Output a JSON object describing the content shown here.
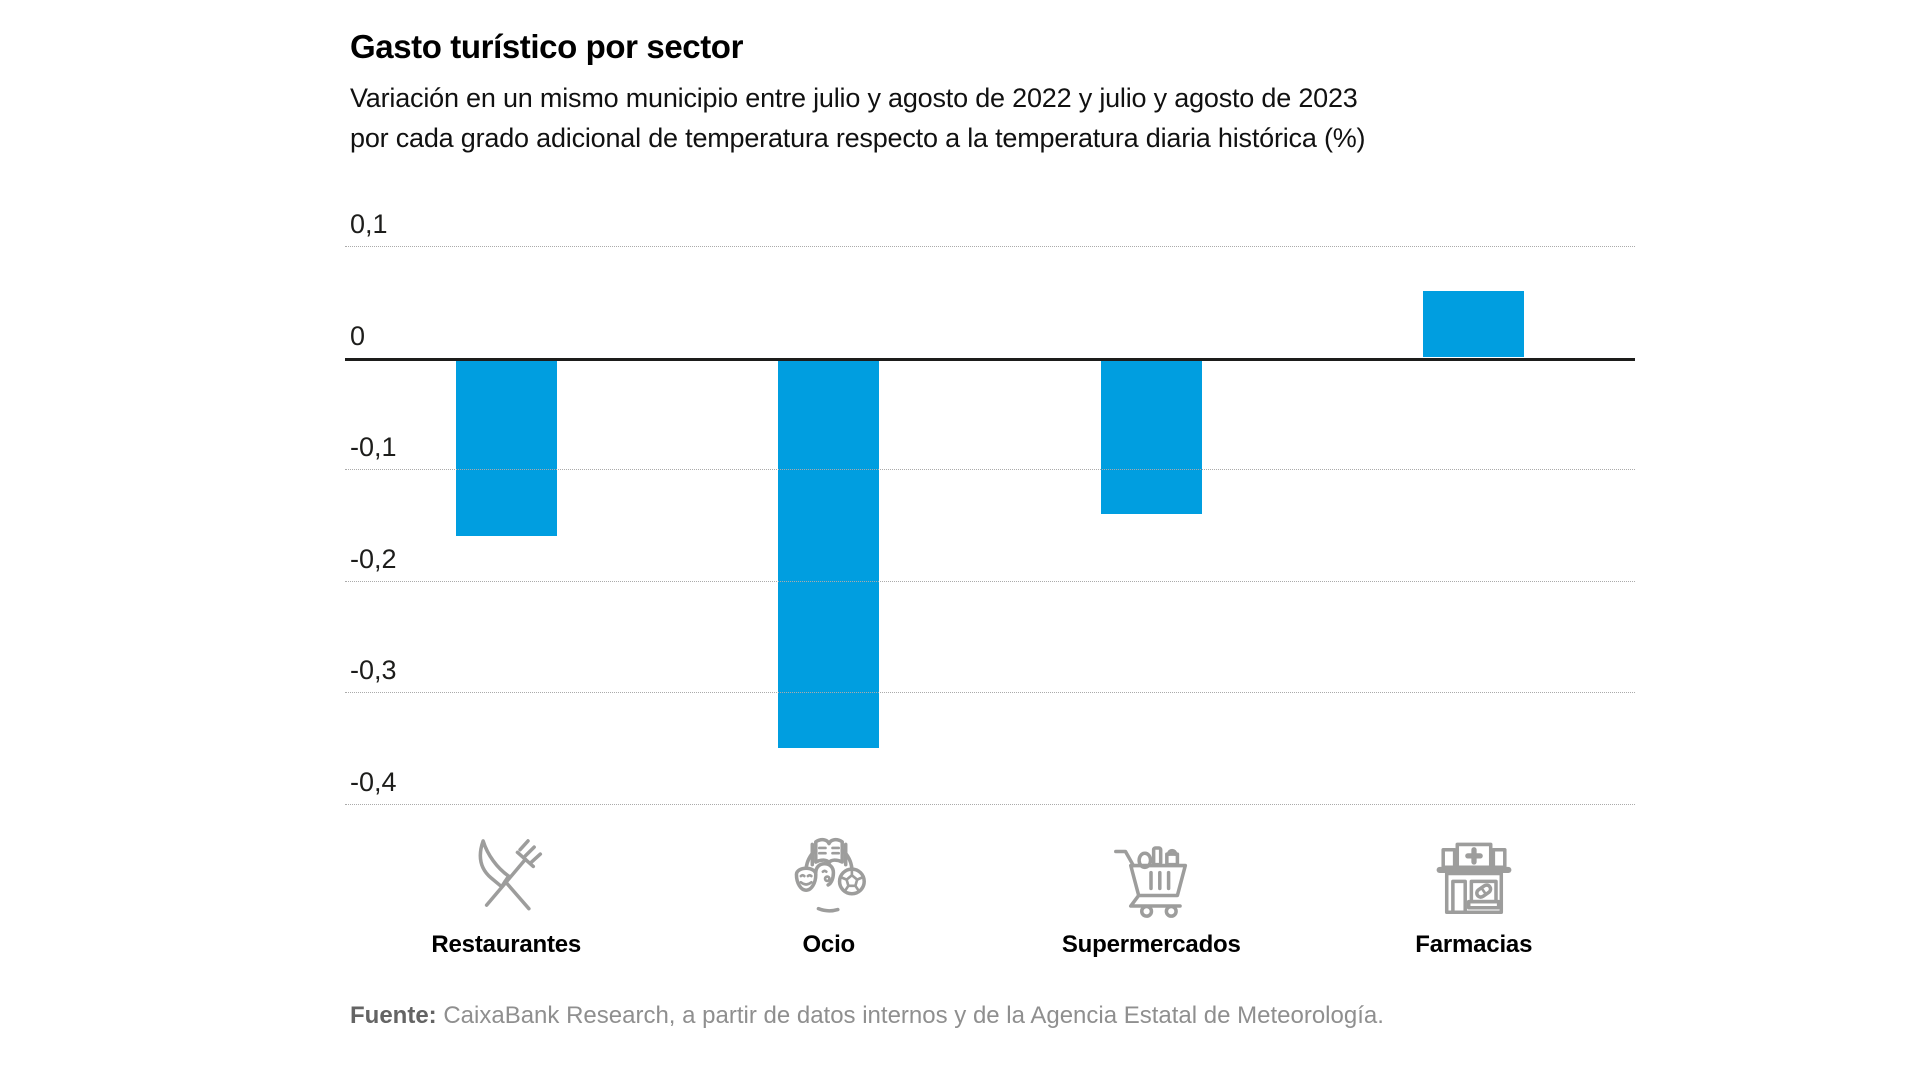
{
  "chart_data": {
    "type": "bar",
    "title": "Gasto turístico por sector",
    "subtitle_lines": [
      "Variación en un mismo municipio entre julio y agosto de 2022 y julio y agosto de 2023",
      "por cada grado adicional de temperatura respecto a la temperatura diaria histórica (%)"
    ],
    "categories": [
      "Restaurantes",
      "Ocio",
      "Supermercados",
      "Farmacias"
    ],
    "values": [
      -0.16,
      -0.35,
      -0.14,
      0.06
    ],
    "icons": [
      "restaurant-utensils-icon",
      "leisure-icon",
      "supermarket-cart-icon",
      "pharmacy-icon"
    ],
    "y_ticks": [
      {
        "value": 0.1,
        "label": "0,1"
      },
      {
        "value": 0,
        "label": "0"
      },
      {
        "value": -0.1,
        "label": "-0,1"
      },
      {
        "value": -0.2,
        "label": "-0,2"
      },
      {
        "value": -0.3,
        "label": "-0,3"
      },
      {
        "value": -0.4,
        "label": "-0,4"
      }
    ],
    "ylim": [
      -0.45,
      0.12
    ],
    "xlabel": "",
    "ylabel": "",
    "grid": "horizontal dotted",
    "legend": "none",
    "bar_color": "#009EE0"
  },
  "footer": {
    "source_label": "Fuente:",
    "source_text": " CaixaBank Research, a partir de datos internos y de la Agencia Estatal de Meteorología."
  },
  "colors": {
    "bar": "#009EE0",
    "icon_gray": "#9d9d9c",
    "grid_gray": "#ababab",
    "zero_line": "#1d1d1b",
    "text": "#111111",
    "source_gray": "#8f8f8f"
  }
}
